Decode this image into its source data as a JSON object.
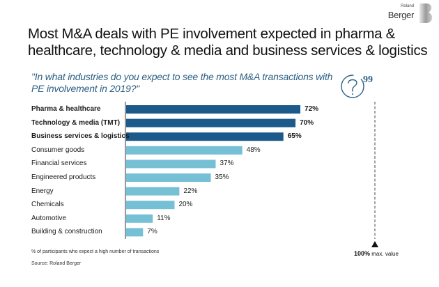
{
  "brand": {
    "small": "Roland",
    "big": "Berger"
  },
  "title": "Most M&A deals with PE involvement expected in pharma & healthcare, technology & media and business services & logistics",
  "question": "\"In what industries do you expect to see the most M&A transactions with PE involvement in 2019?\"",
  "icons": {
    "question": "question-quote-icon",
    "max_marker": "triangle-up-icon"
  },
  "colors": {
    "highlight_bar": "#1b5a8a",
    "regular_bar": "#76c0d6",
    "question_text": "#2c5f83"
  },
  "chart_data": {
    "type": "bar",
    "orientation": "horizontal",
    "title": "",
    "xlabel": "% of participants who expect a high number of transactions",
    "ylabel": "",
    "xlim": [
      0,
      100
    ],
    "unit": "%",
    "categories": [
      "Pharma & healthcare",
      "Technology & media (TMT)",
      "Business services & logistics",
      "Consumer goods",
      "Financial services",
      "Engineered products",
      "Energy",
      "Chemicals",
      "Automotive",
      "Building & construction"
    ],
    "values": [
      72,
      70,
      65,
      48,
      37,
      35,
      22,
      20,
      11,
      7
    ],
    "highlighted": [
      true,
      true,
      true,
      false,
      false,
      false,
      false,
      false,
      false,
      false
    ],
    "value_labels": [
      "72%",
      "70%",
      "65%",
      "48%",
      "37%",
      "35%",
      "22%",
      "20%",
      "11%",
      "7%"
    ],
    "reference_line": {
      "value": 100,
      "label_value": "100%",
      "label_text": "max. value",
      "style": "dashed"
    },
    "grid": false,
    "legend": "none"
  },
  "footnote": "% of participants who expect a high number of transactions",
  "source": "Source: Roland Berger"
}
